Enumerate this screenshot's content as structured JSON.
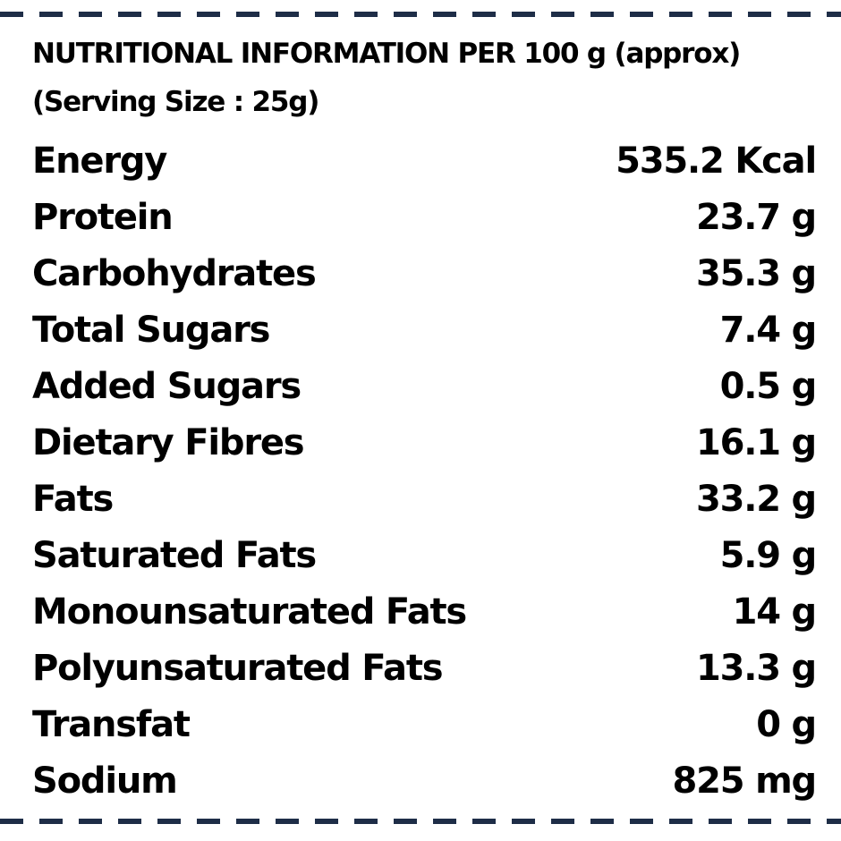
{
  "colors": {
    "border": "#1e2d47",
    "text": "#000000",
    "background": "#ffffff"
  },
  "header": {
    "title": "NUTRITIONAL INFORMATION PER 100 g (approx)",
    "serving": "(Serving Size : 25g)"
  },
  "rows": [
    {
      "label": "Energy",
      "value": "535.2 Kcal"
    },
    {
      "label": "Protein",
      "value": "23.7 g"
    },
    {
      "label": "Carbohydrates",
      "value": "35.3 g"
    },
    {
      "label": "Total Sugars",
      "value": "7.4 g"
    },
    {
      "label": "Added Sugars",
      "value": "0.5 g"
    },
    {
      "label": "Dietary Fibres",
      "value": "16.1 g"
    },
    {
      "label": "Fats",
      "value": "33.2 g"
    },
    {
      "label": "Saturated Fats",
      "value": "5.9 g"
    },
    {
      "label": "Monounsaturated Fats",
      "value": "14 g"
    },
    {
      "label": "Polyunsaturated Fats",
      "value": "13.3 g"
    },
    {
      "label": "Transfat",
      "value": "0 g"
    },
    {
      "label": "Sodium",
      "value": "825 mg"
    }
  ]
}
